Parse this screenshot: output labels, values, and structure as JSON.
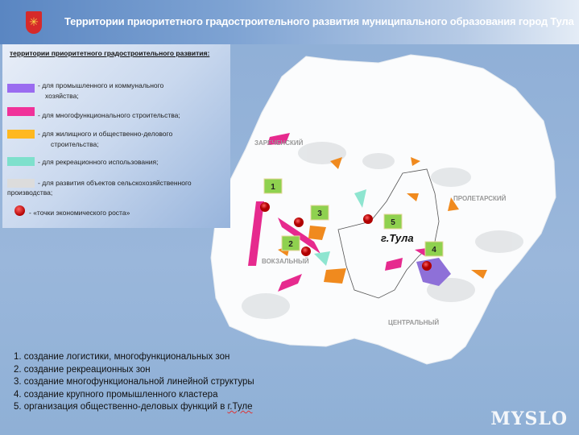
{
  "header": {
    "title": "Территории приоритетного градостроительного развития муниципального образования город Тула",
    "crest_icon": "tula-coat-of-arms"
  },
  "legend": {
    "title": "территории  приоритетного  градостроительного  развития:",
    "items": [
      {
        "label": "- для промышленного и коммунального",
        "label2": "хозяйства;",
        "color": "#9a6cf0"
      },
      {
        "label": "- для многофункционального строительства;",
        "color": "#f0329a"
      },
      {
        "label": "- для жилищного и общественно-делового",
        "label2": "строительства;",
        "color": "#ffb820"
      },
      {
        "label": "- для рекреационного использования;",
        "color": "#7ee0cc"
      },
      {
        "label": "- для развития объектов сельскохозяйственного",
        "label2": "производства;",
        "color": "#dcdcdc"
      },
      {
        "label": "- «точки экономического роста»",
        "color": "#c80000"
      }
    ]
  },
  "map": {
    "districts": [
      "ЗАРЕЧЕНСКИЙ",
      "ПРОЛЕТАРСКИЙ",
      "ВОКЗАЛЬНЫЙ",
      "ЦЕНТРАЛЬНЫЙ"
    ],
    "city_label": "г.Тула",
    "markers": [
      "1",
      "2",
      "3",
      "4",
      "5"
    ]
  },
  "list": [
    "1.   создание логистики,  многофункциональных  зон",
    "2.   создание рекреационных  зон",
    "3. создание многофункциональной  линейной  структуры",
    "4. создание крупного промышленного  кластера",
    "5. организация общественно-деловых  функций   в "
  ],
  "list_city": "г.Туле",
  "watermark": "MYSLO"
}
